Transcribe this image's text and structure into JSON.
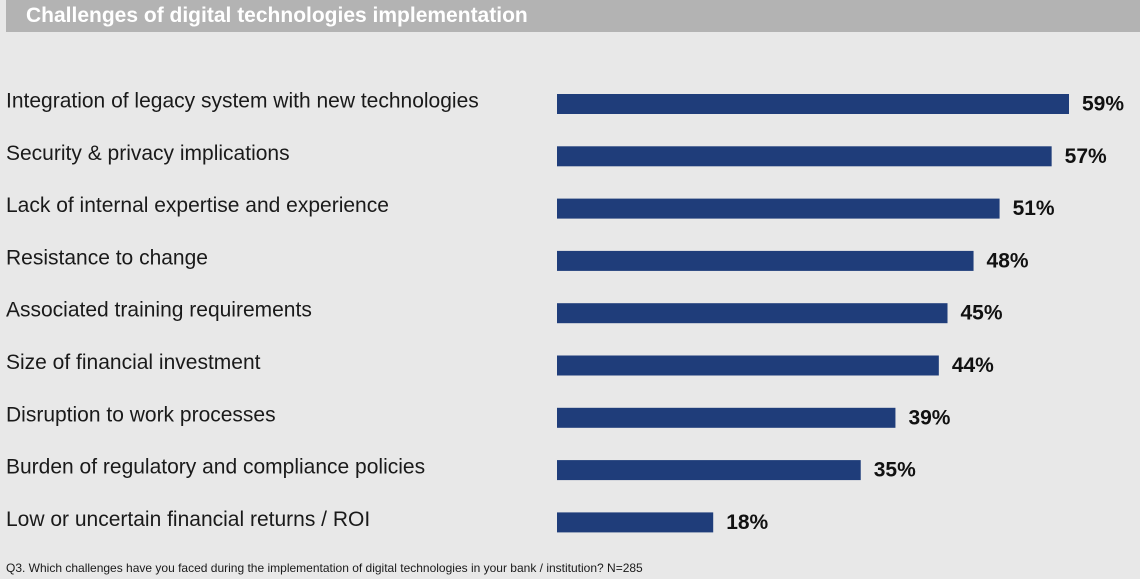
{
  "title": "Challenges of digital technologies implementation",
  "footnote": "Q3. Which challenges have you faced during the implementation of digital technologies in your bank / institution? N=285",
  "colors": {
    "bar": "#1f3d7a",
    "title_bar": "#b3b3b3",
    "background": "#e8e8e8"
  },
  "chart_data": {
    "type": "bar",
    "orientation": "horizontal",
    "categories": [
      "Integration of legacy system with new technologies",
      "Security & privacy implications",
      "Lack of internal expertise and experience",
      "Resistance to change",
      "Associated training requirements",
      "Size of financial investment",
      "Disruption to work processes",
      "Burden of regulatory and compliance policies",
      "Low or uncertain financial returns / ROI"
    ],
    "values": [
      59,
      57,
      51,
      48,
      45,
      44,
      39,
      35,
      18
    ],
    "value_labels": [
      "59%",
      "57%",
      "51%",
      "48%",
      "45%",
      "44%",
      "39%",
      "35%",
      "18%"
    ],
    "unit": "%",
    "xlim": [
      0,
      59
    ],
    "grid": false,
    "legend": "none"
  }
}
